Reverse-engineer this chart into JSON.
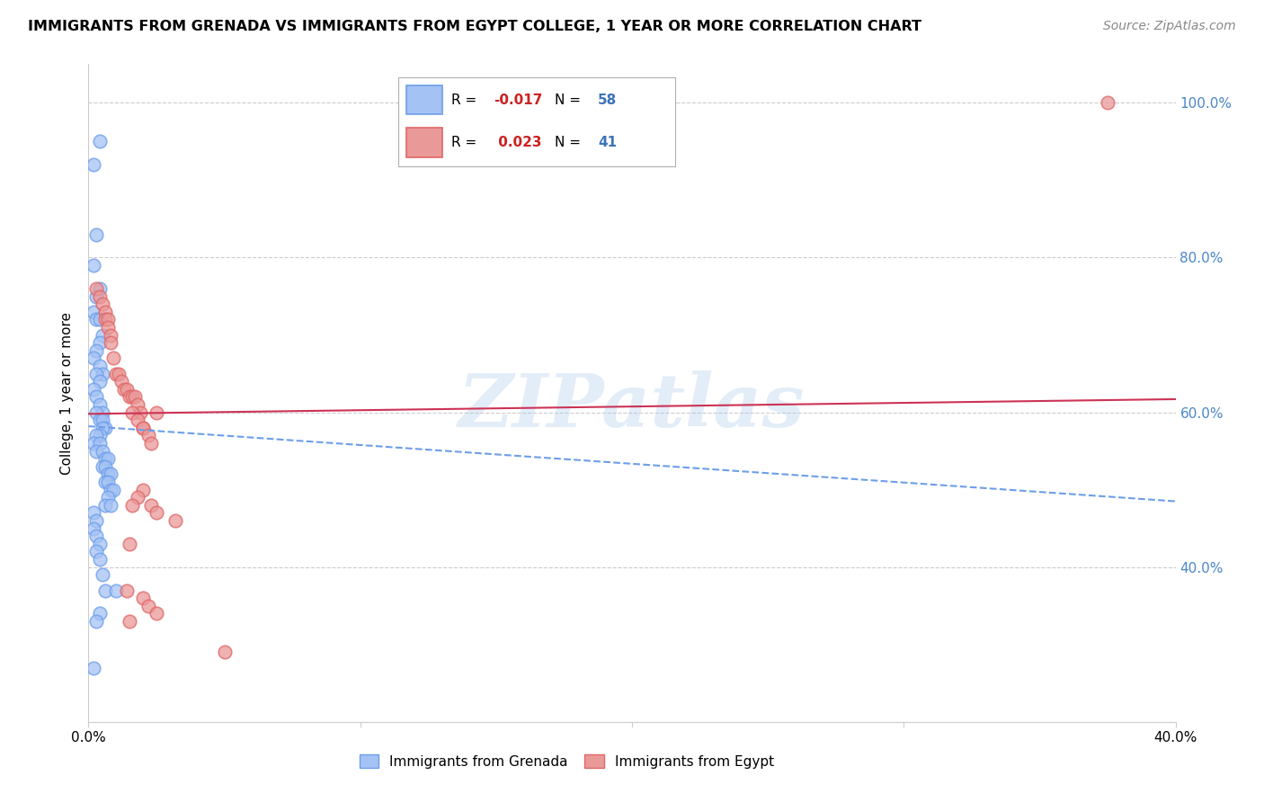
{
  "title": "IMMIGRANTS FROM GRENADA VS IMMIGRANTS FROM EGYPT COLLEGE, 1 YEAR OR MORE CORRELATION CHART",
  "source": "Source: ZipAtlas.com",
  "ylabel": "College, 1 year or more",
  "watermark": "ZIPatlas",
  "xmin": 0.0,
  "xmax": 0.4,
  "ymin": 0.2,
  "ymax": 1.05,
  "grenada_R": -0.017,
  "grenada_N": 58,
  "egypt_R": 0.023,
  "egypt_N": 41,
  "grenada_color": "#a4c2f4",
  "egypt_color": "#ea9999",
  "grenada_edge_color": "#6d9eeb",
  "egypt_edge_color": "#e06666",
  "grenada_line_color": "#6d9eeb",
  "egypt_line_color": "#cc3355",
  "grenada_scatter_x": [
    0.002,
    0.004,
    0.003,
    0.002,
    0.004,
    0.003,
    0.002,
    0.003,
    0.004,
    0.005,
    0.004,
    0.003,
    0.002,
    0.004,
    0.005,
    0.003,
    0.004,
    0.002,
    0.003,
    0.004,
    0.005,
    0.003,
    0.004,
    0.005,
    0.006,
    0.005,
    0.004,
    0.003,
    0.002,
    0.004,
    0.003,
    0.005,
    0.006,
    0.007,
    0.005,
    0.006,
    0.007,
    0.008,
    0.006,
    0.007,
    0.008,
    0.009,
    0.007,
    0.006,
    0.008,
    0.002,
    0.003,
    0.002,
    0.003,
    0.004,
    0.003,
    0.004,
    0.005,
    0.006,
    0.01,
    0.004,
    0.003,
    0.002
  ],
  "grenada_scatter_y": [
    0.92,
    0.95,
    0.83,
    0.79,
    0.76,
    0.75,
    0.73,
    0.72,
    0.72,
    0.7,
    0.69,
    0.68,
    0.67,
    0.66,
    0.65,
    0.65,
    0.64,
    0.63,
    0.62,
    0.61,
    0.6,
    0.6,
    0.59,
    0.59,
    0.58,
    0.58,
    0.57,
    0.57,
    0.56,
    0.56,
    0.55,
    0.55,
    0.54,
    0.54,
    0.53,
    0.53,
    0.52,
    0.52,
    0.51,
    0.51,
    0.5,
    0.5,
    0.49,
    0.48,
    0.48,
    0.47,
    0.46,
    0.45,
    0.44,
    0.43,
    0.42,
    0.41,
    0.39,
    0.37,
    0.37,
    0.34,
    0.33,
    0.27
  ],
  "egypt_scatter_x": [
    0.003,
    0.004,
    0.005,
    0.006,
    0.006,
    0.007,
    0.007,
    0.008,
    0.008,
    0.009,
    0.01,
    0.011,
    0.012,
    0.013,
    0.014,
    0.015,
    0.016,
    0.017,
    0.018,
    0.019,
    0.016,
    0.018,
    0.02,
    0.02,
    0.022,
    0.023,
    0.025,
    0.02,
    0.018,
    0.016,
    0.023,
    0.025,
    0.032,
    0.015,
    0.014,
    0.02,
    0.022,
    0.025,
    0.015,
    0.05,
    0.375
  ],
  "egypt_scatter_y": [
    0.76,
    0.75,
    0.74,
    0.73,
    0.72,
    0.72,
    0.71,
    0.7,
    0.69,
    0.67,
    0.65,
    0.65,
    0.64,
    0.63,
    0.63,
    0.62,
    0.62,
    0.62,
    0.61,
    0.6,
    0.6,
    0.59,
    0.58,
    0.58,
    0.57,
    0.56,
    0.6,
    0.5,
    0.49,
    0.48,
    0.48,
    0.47,
    0.46,
    0.43,
    0.37,
    0.36,
    0.35,
    0.34,
    0.33,
    0.29,
    1.0
  ],
  "grenada_trend_x": [
    0.0,
    0.4
  ],
  "grenada_trend_y": [
    0.582,
    0.485
  ],
  "egypt_trend_x": [
    0.0,
    0.4
  ],
  "egypt_trend_y": [
    0.598,
    0.617
  ],
  "background_color": "#ffffff",
  "grid_color": "#cccccc",
  "ytick_right_labels": [
    "40.0%",
    "60.0%",
    "80.0%",
    "100.0%"
  ],
  "ytick_positions": [
    0.4,
    0.6,
    0.8,
    1.0
  ],
  "xtick_positions": [
    0.0,
    0.1,
    0.2,
    0.3,
    0.4
  ],
  "xtick_labels": [
    "0.0%",
    "",
    "",
    "",
    "40.0%"
  ]
}
